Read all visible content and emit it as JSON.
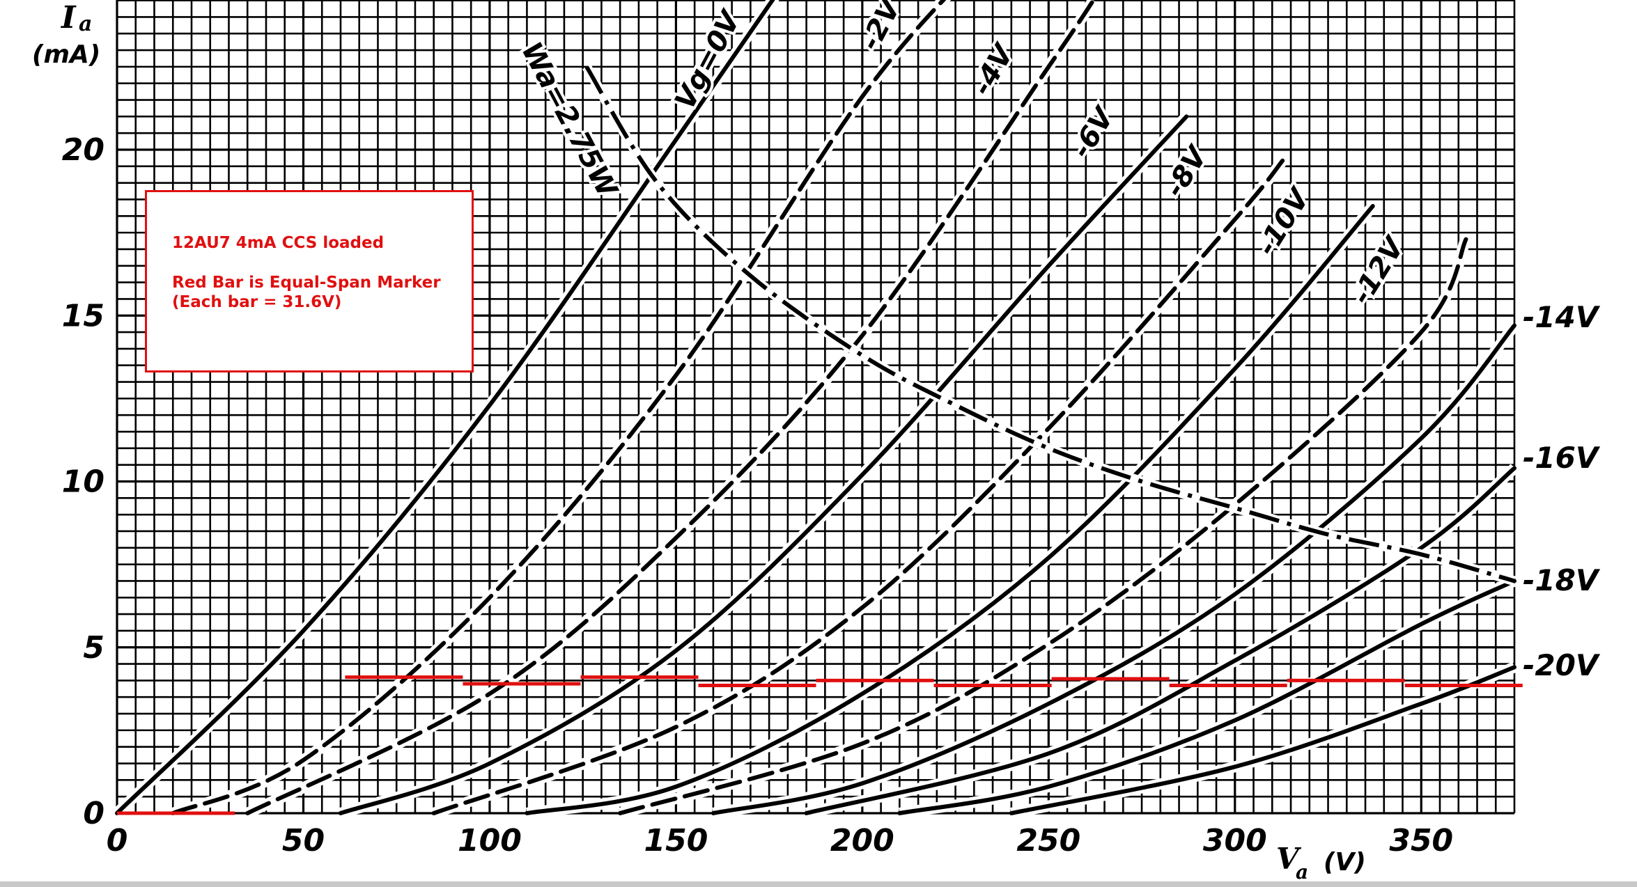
{
  "chart_data": {
    "type": "line",
    "title": "",
    "ylabel": {
      "symbol": "I",
      "sub": "a",
      "unit": "(mA)"
    },
    "xlabel": {
      "symbol": "V",
      "sub": "a",
      "unit": "(V)"
    },
    "xlim": [
      0,
      375
    ],
    "ylim": [
      0,
      24.5
    ],
    "grid": true,
    "x_ticks": [
      "0",
      "50",
      "100",
      "150",
      "200",
      "250",
      "300",
      "350"
    ],
    "y_ticks": [
      "0",
      "5",
      "10",
      "15",
      "20"
    ],
    "series": [
      {
        "name": "Vg=0V",
        "grid_voltage": 0,
        "style": "solid",
        "x": [
          0,
          50,
          100,
          150,
          182
        ],
        "y": [
          0,
          5.5,
          12.3,
          20.3,
          25.5
        ]
      },
      {
        "name": "-2V",
        "grid_voltage": -2,
        "style": "dashed",
        "x": [
          15,
          50,
          100,
          150,
          200,
          230
        ],
        "y": [
          0,
          1.6,
          6.5,
          13.2,
          21.6,
          25.5
        ]
      },
      {
        "name": "-4V",
        "grid_voltage": -4,
        "style": "dashed",
        "x": [
          35,
          100,
          150,
          200,
          250,
          262
        ],
        "y": [
          0,
          3.6,
          8.3,
          14.4,
          22.5,
          24.5
        ]
      },
      {
        "name": "-6V",
        "grid_voltage": -6,
        "style": "solid",
        "x": [
          60,
          100,
          150,
          200,
          250,
          287
        ],
        "y": [
          0,
          1.5,
          4.9,
          10.2,
          16.5,
          21.0
        ]
      },
      {
        "name": "-8V",
        "grid_voltage": -8,
        "style": "dashed",
        "x": [
          85,
          150,
          200,
          250,
          300,
          313
        ],
        "y": [
          0,
          2.6,
          6.2,
          11.6,
          17.9,
          19.7
        ]
      },
      {
        "name": "-10V",
        "grid_voltage": -10,
        "style": "solid",
        "x": [
          110,
          150,
          200,
          250,
          300,
          337
        ],
        "y": [
          0,
          0.8,
          3.6,
          7.7,
          13.4,
          18.3
        ]
      },
      {
        "name": "-12V",
        "grid_voltage": -12,
        "style": "dashed",
        "x": [
          135,
          200,
          250,
          300,
          350,
          362
        ],
        "y": [
          0,
          2.1,
          5.1,
          9.3,
          14.5,
          17.3
        ]
      },
      {
        "name": "-14V",
        "grid_voltage": -14,
        "style": "solid",
        "x": [
          160,
          200,
          250,
          300,
          350,
          375
        ],
        "y": [
          0,
          0.9,
          3.3,
          6.6,
          11.3,
          14.7
        ]
      },
      {
        "name": "-16V",
        "grid_voltage": -16,
        "style": "solid",
        "x": [
          185,
          250,
          300,
          350,
          375
        ],
        "y": [
          0,
          1.8,
          4.6,
          8.0,
          10.4
        ]
      },
      {
        "name": "-18V",
        "grid_voltage": -18,
        "style": "solid",
        "x": [
          210,
          250,
          300,
          350,
          375
        ],
        "y": [
          0,
          0.8,
          2.8,
          5.7,
          7.0
        ]
      },
      {
        "name": "-20V",
        "grid_voltage": -20,
        "style": "solid",
        "x": [
          240,
          300,
          350,
          375
        ],
        "y": [
          0,
          1.4,
          3.3,
          4.4
        ]
      }
    ],
    "power_limit": {
      "label": "Wa=2.75W",
      "x": [
        126,
        145,
        170,
        200,
        225,
        250,
        275,
        300,
        325,
        350,
        375
      ],
      "y": [
        22.5,
        19.0,
        16.2,
        13.8,
        12.3,
        11.0,
        10.0,
        9.2,
        8.4,
        7.8,
        7.0
      ]
    },
    "inline_labels": [
      {
        "text": "Vg=0V",
        "series": "Vg=0V"
      },
      {
        "text": "-2V",
        "series": "-2V"
      },
      {
        "text": "-4V",
        "series": "-4V"
      },
      {
        "text": "-6V",
        "series": "-6V"
      },
      {
        "text": "-8V",
        "series": "-8V"
      },
      {
        "text": "-10V",
        "series": "-10V"
      },
      {
        "text": "-12V",
        "series": "-12V"
      },
      {
        "text": "-14V",
        "series": "-14V"
      },
      {
        "text": "-16V",
        "series": "-16V"
      },
      {
        "text": "-18V",
        "series": "-18V"
      },
      {
        "text": "-20V",
        "series": "-20V"
      }
    ],
    "red_bars": {
      "span_volts": 31.6,
      "segments": [
        {
          "x": [
            0,
            31.6
          ],
          "y": 0
        },
        {
          "x": [
            61.2,
            92.8
          ],
          "y": 4.1
        },
        {
          "x": [
            92.8,
            124.4
          ],
          "y": 3.9
        },
        {
          "x": [
            124.4,
            156.0
          ],
          "y": 4.1
        },
        {
          "x": [
            156.0,
            187.6
          ],
          "y": 3.85
        },
        {
          "x": [
            187.6,
            219.2
          ],
          "y": 4.0
        },
        {
          "x": [
            219.2,
            250.8
          ],
          "y": 3.85
        },
        {
          "x": [
            250.8,
            282.4
          ],
          "y": 4.05
        },
        {
          "x": [
            282.4,
            314.0
          ],
          "y": 3.85
        },
        {
          "x": [
            314.0,
            345.6
          ],
          "y": 4.0
        },
        {
          "x": [
            345.6,
            377.2
          ],
          "y": 3.85
        }
      ]
    },
    "annotation": {
      "line1": "12AU7 4mA CCS loaded",
      "line2": "Red Bar is Equal-Span Marker",
      "line3": "(Each bar = 31.6V)"
    },
    "colors": {
      "curve": "#000000",
      "grid": "#000000",
      "marker": "#e01010"
    }
  }
}
